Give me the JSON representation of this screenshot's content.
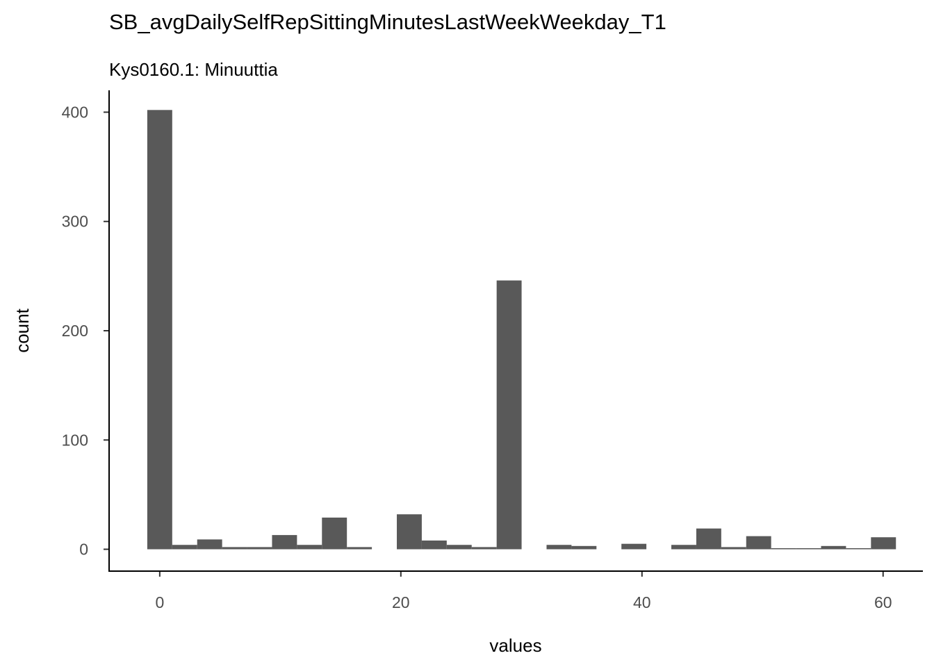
{
  "chart_data": {
    "type": "bar",
    "title": "SB_avgDailySelfRepSittingMinutesLastWeekWeekday_T1",
    "subtitle": "Kys0160.1: Minuuttia",
    "xlabel": "values",
    "ylabel": "count",
    "xlim": [
      -4.2,
      63.3
    ],
    "ylim": [
      -20,
      420
    ],
    "xticks": [
      0,
      20,
      40,
      60
    ],
    "yticks": [
      0,
      100,
      200,
      300,
      400
    ],
    "grid": false,
    "bin_width": 2.07,
    "bins": [
      {
        "x": 0.0,
        "count": 402
      },
      {
        "x": 2.07,
        "count": 4
      },
      {
        "x": 4.14,
        "count": 9
      },
      {
        "x": 6.21,
        "count": 2
      },
      {
        "x": 8.28,
        "count": 2
      },
      {
        "x": 10.35,
        "count": 13
      },
      {
        "x": 12.42,
        "count": 4
      },
      {
        "x": 14.49,
        "count": 29
      },
      {
        "x": 16.56,
        "count": 2
      },
      {
        "x": 18.63,
        "count": 0
      },
      {
        "x": 20.7,
        "count": 32
      },
      {
        "x": 22.77,
        "count": 8
      },
      {
        "x": 24.84,
        "count": 4
      },
      {
        "x": 26.91,
        "count": 2
      },
      {
        "x": 28.98,
        "count": 246
      },
      {
        "x": 31.05,
        "count": 0
      },
      {
        "x": 33.12,
        "count": 4
      },
      {
        "x": 35.19,
        "count": 3
      },
      {
        "x": 37.26,
        "count": 0
      },
      {
        "x": 39.33,
        "count": 5
      },
      {
        "x": 41.4,
        "count": 0
      },
      {
        "x": 43.47,
        "count": 4
      },
      {
        "x": 45.54,
        "count": 19
      },
      {
        "x": 47.61,
        "count": 2
      },
      {
        "x": 49.68,
        "count": 12
      },
      {
        "x": 51.75,
        "count": 1
      },
      {
        "x": 53.82,
        "count": 1
      },
      {
        "x": 55.89,
        "count": 3
      },
      {
        "x": 57.96,
        "count": 1
      },
      {
        "x": 60.03,
        "count": 11
      }
    ]
  }
}
